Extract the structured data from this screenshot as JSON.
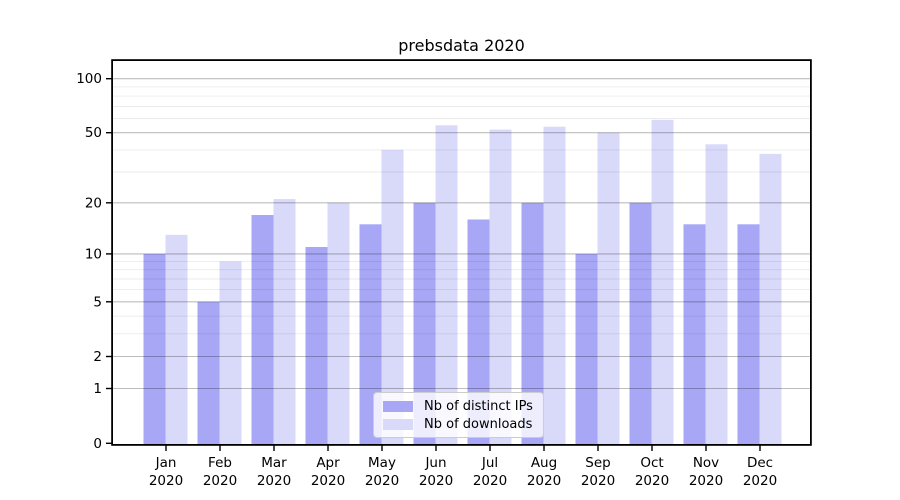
{
  "figure": {
    "background": "#ffffff"
  },
  "chart_data": {
    "type": "bar",
    "title": "prebsdata 2020",
    "categories": [
      "Jan",
      "Feb",
      "Mar",
      "Apr",
      "May",
      "Jun",
      "Jul",
      "Aug",
      "Sep",
      "Oct",
      "Nov",
      "Dec"
    ],
    "year_label": "2020",
    "series": [
      {
        "name": "Nb of distinct IPs",
        "color": "#a7a7f6",
        "values": [
          10,
          5,
          17,
          11,
          15,
          20,
          16,
          20,
          10,
          20,
          15,
          15
        ]
      },
      {
        "name": "Nb of downloads",
        "color": "#d9d9fa",
        "values": [
          13,
          9,
          21,
          20,
          40,
          55,
          52,
          54,
          50,
          59,
          43,
          38
        ]
      }
    ],
    "xlabel": "",
    "ylabel": "",
    "yscale": "symlog",
    "ylim": [
      0,
      125
    ],
    "yticks": [
      100,
      50,
      20,
      10,
      5,
      2,
      1,
      0
    ],
    "yticks_minor": [
      3,
      4,
      6,
      7,
      8,
      9,
      30,
      40,
      60,
      70,
      80,
      90
    ],
    "grid": true,
    "legend_position": "lower center"
  },
  "colors": {
    "grid_major": "rgba(0,0,0,0.26)",
    "grid_minor": "rgba(0,0,0,0.08)",
    "axis_spine": "#000000",
    "tick_text": "#000000",
    "legend_border": "#cccccc"
  }
}
